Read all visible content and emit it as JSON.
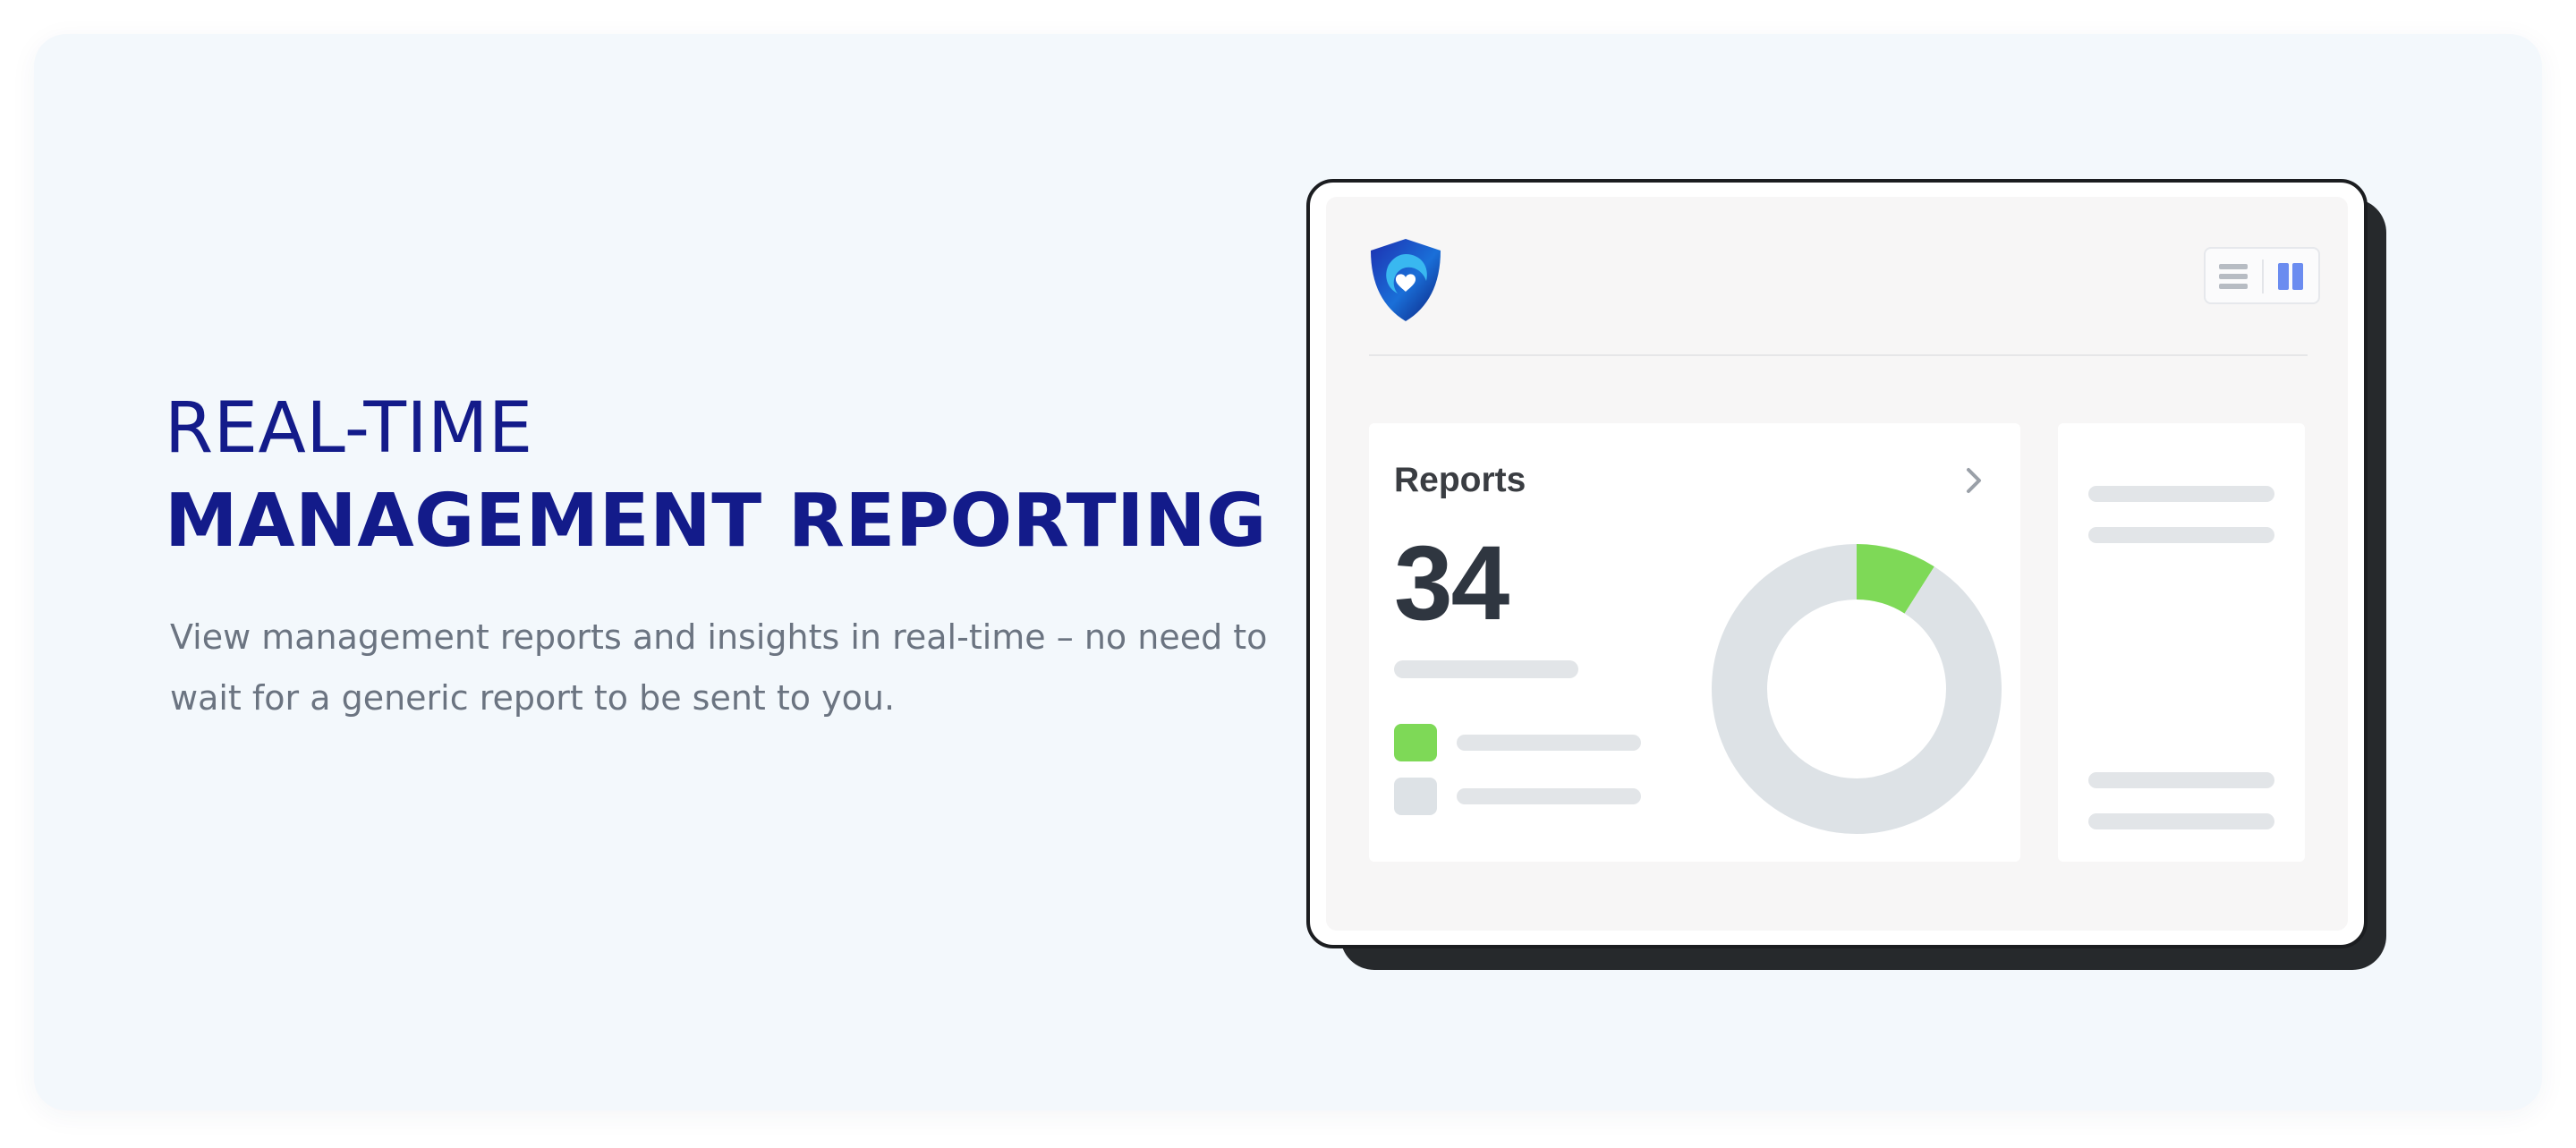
{
  "hero": {
    "title_line1": "REAL-TIME",
    "title_line2": "MANAGEMENT REPORTING",
    "description": "View management reports and insights in real-time – no need to wait for a generic report to be sent to you."
  },
  "mockup": {
    "icons": {
      "logo": "shield-heart-logo",
      "list_view": "list-view-icon",
      "column_view": "column-view-icon",
      "chevron": "chevron-right-icon"
    },
    "reports_card": {
      "label": "Reports",
      "count": "34",
      "chart": {
        "type": "donut",
        "segments": [
          {
            "fraction": 0.09,
            "color": "#7ed957"
          },
          {
            "fraction": 0.91,
            "color": "#dde2e6"
          }
        ]
      },
      "legend_colors": [
        "#7ed957",
        "#dde2e6"
      ]
    }
  },
  "colors": {
    "brand_navy": "#131b8a",
    "accent_green": "#7ed957",
    "toggle_active": "#6b8cf0",
    "placeholder_grey": "#e2e5e8"
  }
}
